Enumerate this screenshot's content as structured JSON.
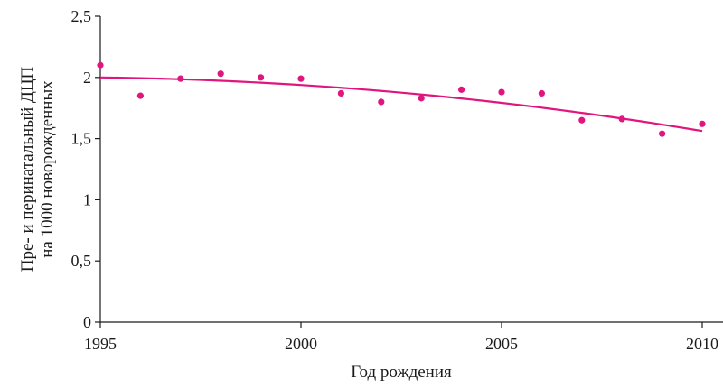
{
  "chart_data": {
    "type": "scatter",
    "xlabel": "Год рождения",
    "ylabel_lines": [
      "Пре- и перинатальный ДЦП",
      "на 1000 новорожденных"
    ],
    "xlim": [
      1995,
      2010
    ],
    "ylim": [
      0,
      2.5
    ],
    "x_ticks": [
      {
        "value": 1995,
        "label": "1995"
      },
      {
        "value": 2000,
        "label": "2000"
      },
      {
        "value": 2005,
        "label": "2005"
      },
      {
        "value": 2010,
        "label": "2010"
      }
    ],
    "y_ticks": [
      {
        "value": 0,
        "label": "0"
      },
      {
        "value": 0.5,
        "label": "0,5"
      },
      {
        "value": 1,
        "label": "1"
      },
      {
        "value": 1.5,
        "label": "1,5"
      },
      {
        "value": 2,
        "label": "2"
      },
      {
        "value": 2.5,
        "label": "2,5"
      }
    ],
    "points": [
      {
        "x": 1995,
        "y": 2.1
      },
      {
        "x": 1996,
        "y": 1.85
      },
      {
        "x": 1997,
        "y": 1.99
      },
      {
        "x": 1998,
        "y": 2.03
      },
      {
        "x": 1999,
        "y": 2.0
      },
      {
        "x": 2000,
        "y": 1.99
      },
      {
        "x": 2001,
        "y": 1.87
      },
      {
        "x": 2002,
        "y": 1.8
      },
      {
        "x": 2003,
        "y": 1.83
      },
      {
        "x": 2004,
        "y": 1.9
      },
      {
        "x": 2005,
        "y": 1.88
      },
      {
        "x": 2006,
        "y": 1.87
      },
      {
        "x": 2007,
        "y": 1.65
      },
      {
        "x": 2008,
        "y": 1.66
      },
      {
        "x": 2009,
        "y": 1.54
      },
      {
        "x": 2010,
        "y": 1.62
      }
    ],
    "trend": {
      "type": "quadratic",
      "coefficients": [
        2.0,
        -0.004,
        -0.00168
      ]
    },
    "grid": false,
    "legend": "none",
    "color": "#e0157e"
  }
}
